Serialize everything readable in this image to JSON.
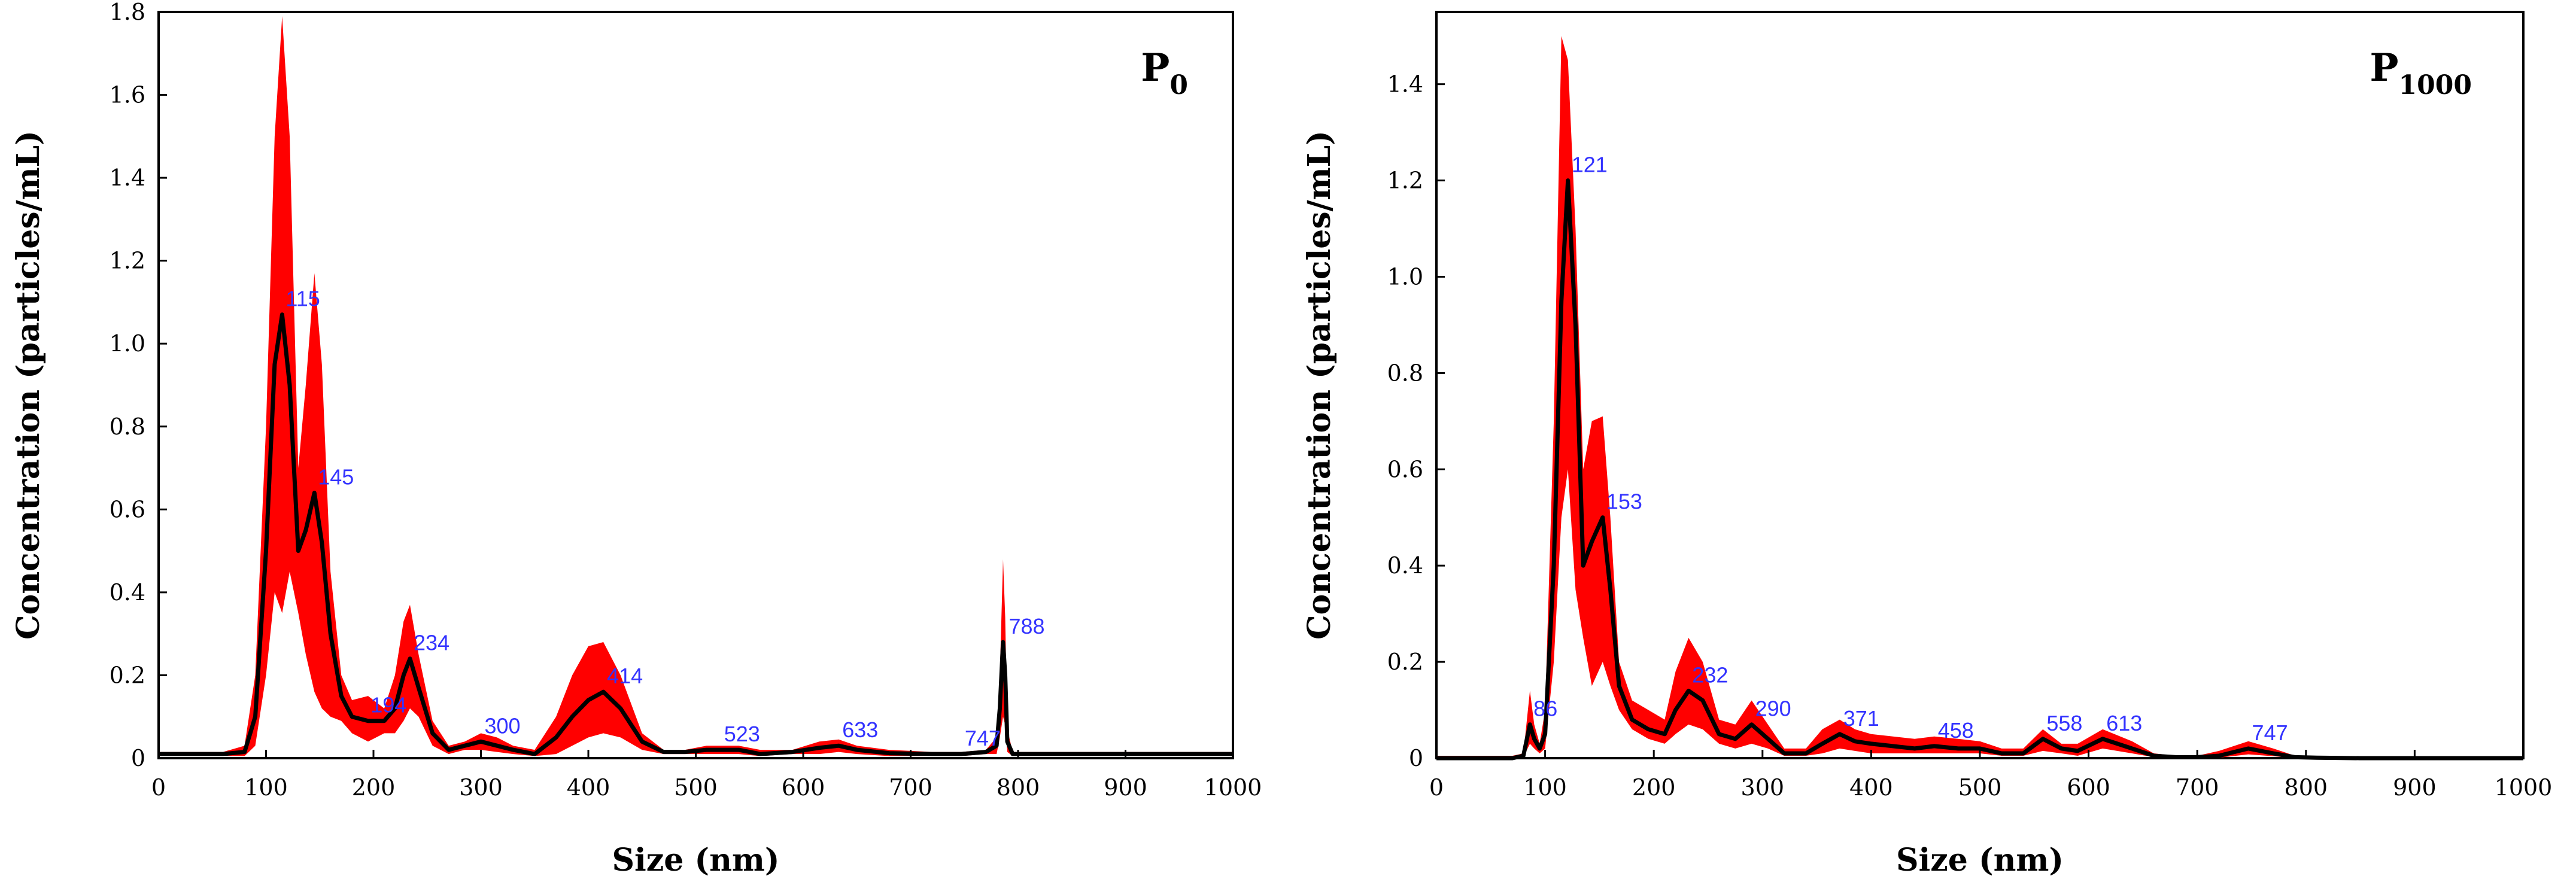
{
  "chart_data": [
    {
      "type": "line",
      "panel_label": "P",
      "panel_subscript": "0",
      "xlabel": "Size (nm)",
      "ylabel": "Concentration (particles/mL)",
      "xlim": [
        0,
        1000
      ],
      "ylim": [
        0,
        1.8
      ],
      "xticks": [
        "0",
        "100",
        "200",
        "300",
        "400",
        "500",
        "600",
        "700",
        "800",
        "900",
        "1000"
      ],
      "yticks": [
        "0",
        "0.2",
        "0.4",
        "0.6",
        "0.8",
        "1.0",
        "1.2",
        "1.4",
        "1.6",
        "1.8"
      ],
      "series": [
        {
          "name": "mean",
          "x": [
            0,
            60,
            80,
            90,
            100,
            108,
            115,
            122,
            130,
            137,
            145,
            152,
            160,
            170,
            180,
            195,
            210,
            220,
            228,
            234,
            242,
            255,
            270,
            285,
            300,
            315,
            330,
            350,
            370,
            385,
            400,
            414,
            430,
            450,
            470,
            490,
            510,
            523,
            540,
            560,
            590,
            615,
            633,
            650,
            680,
            720,
            747,
            770,
            780,
            783,
            786,
            788,
            790,
            795,
            810,
            850,
            900,
            950,
            1000
          ],
          "values": [
            0.01,
            0.01,
            0.015,
            0.1,
            0.5,
            0.95,
            1.07,
            0.9,
            0.5,
            0.55,
            0.64,
            0.52,
            0.3,
            0.15,
            0.1,
            0.09,
            0.09,
            0.12,
            0.2,
            0.24,
            0.17,
            0.06,
            0.02,
            0.03,
            0.04,
            0.03,
            0.02,
            0.01,
            0.05,
            0.1,
            0.14,
            0.16,
            0.12,
            0.04,
            0.015,
            0.015,
            0.02,
            0.02,
            0.02,
            0.01,
            0.015,
            0.025,
            0.03,
            0.02,
            0.012,
            0.01,
            0.01,
            0.015,
            0.03,
            0.12,
            0.28,
            0.2,
            0.04,
            0.01,
            0.01,
            0.01,
            0.01,
            0.01,
            0.01
          ]
        },
        {
          "name": "error band upper",
          "x": [
            0,
            60,
            80,
            90,
            100,
            108,
            115,
            122,
            130,
            137,
            145,
            152,
            160,
            170,
            180,
            195,
            210,
            220,
            228,
            234,
            242,
            255,
            270,
            285,
            300,
            315,
            330,
            350,
            370,
            385,
            400,
            414,
            430,
            450,
            470,
            490,
            510,
            523,
            540,
            560,
            590,
            615,
            633,
            650,
            680,
            720,
            747,
            770,
            780,
            783,
            786,
            788,
            790,
            795,
            810,
            850,
            900,
            950,
            1000
          ],
          "values": [
            0.015,
            0.015,
            0.03,
            0.2,
            0.8,
            1.5,
            1.79,
            1.5,
            0.7,
            0.9,
            1.17,
            0.95,
            0.45,
            0.2,
            0.14,
            0.15,
            0.12,
            0.2,
            0.33,
            0.37,
            0.25,
            0.09,
            0.03,
            0.04,
            0.06,
            0.05,
            0.03,
            0.02,
            0.1,
            0.2,
            0.27,
            0.28,
            0.2,
            0.06,
            0.02,
            0.02,
            0.03,
            0.03,
            0.03,
            0.02,
            0.02,
            0.04,
            0.045,
            0.03,
            0.02,
            0.015,
            0.015,
            0.02,
            0.05,
            0.2,
            0.48,
            0.34,
            0.07,
            0.015,
            0.015,
            0.015,
            0.015,
            0.015,
            0.015
          ]
        },
        {
          "name": "error band lower",
          "x": [
            0,
            60,
            80,
            90,
            100,
            108,
            115,
            122,
            130,
            137,
            145,
            152,
            160,
            170,
            180,
            195,
            210,
            220,
            228,
            234,
            242,
            255,
            270,
            285,
            300,
            315,
            330,
            350,
            370,
            385,
            400,
            414,
            430,
            450,
            470,
            490,
            510,
            523,
            540,
            560,
            590,
            615,
            633,
            650,
            680,
            720,
            747,
            770,
            780,
            783,
            786,
            788,
            790,
            795,
            810,
            850,
            900,
            950,
            1000
          ],
          "values": [
            0.005,
            0.005,
            0.005,
            0.03,
            0.2,
            0.4,
            0.35,
            0.45,
            0.35,
            0.25,
            0.16,
            0.12,
            0.1,
            0.09,
            0.06,
            0.04,
            0.06,
            0.06,
            0.09,
            0.12,
            0.1,
            0.03,
            0.01,
            0.02,
            0.02,
            0.015,
            0.01,
            0.005,
            0.01,
            0.03,
            0.05,
            0.06,
            0.05,
            0.02,
            0.01,
            0.01,
            0.01,
            0.01,
            0.01,
            0.005,
            0.01,
            0.01,
            0.015,
            0.01,
            0.005,
            0.005,
            0.005,
            0.01,
            0.01,
            0.05,
            0.1,
            0.08,
            0.015,
            0.005,
            0.005,
            0.005,
            0.005,
            0.005,
            0.005
          ]
        }
      ],
      "peak_labels": [
        {
          "text": "115",
          "x": 115,
          "y": 1.07
        },
        {
          "text": "145",
          "x": 145,
          "y": 0.64
        },
        {
          "text": "194",
          "x": 194,
          "y": 0.09
        },
        {
          "text": "234",
          "x": 234,
          "y": 0.24
        },
        {
          "text": "300",
          "x": 300,
          "y": 0.04
        },
        {
          "text": "414",
          "x": 414,
          "y": 0.16
        },
        {
          "text": "523",
          "x": 523,
          "y": 0.02
        },
        {
          "text": "633",
          "x": 633,
          "y": 0.03
        },
        {
          "text": "747",
          "x": 747,
          "y": 0.01
        },
        {
          "text": "788",
          "x": 788,
          "y": 0.28
        }
      ]
    },
    {
      "type": "line",
      "panel_label": "P",
      "panel_subscript": "1000",
      "xlabel": "Size (nm)",
      "ylabel": "Concentration (particles/mL)",
      "xlim": [
        0,
        1000
      ],
      "ylim": [
        0,
        1.55
      ],
      "xticks": [
        "0",
        "100",
        "200",
        "300",
        "400",
        "500",
        "600",
        "700",
        "800",
        "900",
        "1000"
      ],
      "yticks": [
        "0",
        "0.2",
        "0.4",
        "0.6",
        "0.8",
        "1.0",
        "1.2",
        "1.4"
      ],
      "series": [
        {
          "name": "mean",
          "x": [
            0,
            70,
            80,
            86,
            90,
            95,
            100,
            108,
            115,
            121,
            128,
            135,
            143,
            153,
            160,
            168,
            180,
            195,
            210,
            220,
            232,
            245,
            260,
            275,
            290,
            305,
            320,
            340,
            355,
            371,
            385,
            400,
            420,
            440,
            458,
            480,
            500,
            520,
            540,
            558,
            575,
            590,
            613,
            640,
            660,
            680,
            700,
            720,
            747,
            770,
            790,
            810,
            850,
            900,
            950,
            1000
          ],
          "values": [
            0.0,
            0.0,
            0.005,
            0.07,
            0.04,
            0.02,
            0.05,
            0.4,
            0.95,
            1.2,
            0.9,
            0.4,
            0.45,
            0.5,
            0.35,
            0.15,
            0.08,
            0.06,
            0.05,
            0.1,
            0.14,
            0.12,
            0.05,
            0.04,
            0.07,
            0.04,
            0.01,
            0.01,
            0.03,
            0.05,
            0.035,
            0.03,
            0.025,
            0.02,
            0.025,
            0.02,
            0.02,
            0.01,
            0.01,
            0.04,
            0.02,
            0.015,
            0.04,
            0.02,
            0.005,
            0.002,
            0.002,
            0.005,
            0.02,
            0.01,
            0.002,
            0.001,
            0.0,
            0.0,
            0.0,
            0.0
          ]
        },
        {
          "name": "error band upper",
          "x": [
            0,
            70,
            80,
            86,
            90,
            95,
            100,
            108,
            115,
            121,
            128,
            135,
            143,
            153,
            160,
            168,
            180,
            195,
            210,
            220,
            232,
            245,
            260,
            275,
            290,
            305,
            320,
            340,
            355,
            371,
            385,
            400,
            420,
            440,
            458,
            480,
            500,
            520,
            540,
            558,
            575,
            590,
            613,
            640,
            660,
            680,
            700,
            720,
            747,
            770,
            790,
            810,
            850,
            900,
            950,
            1000
          ],
          "values": [
            0.005,
            0.005,
            0.01,
            0.14,
            0.07,
            0.03,
            0.1,
            0.7,
            1.5,
            1.45,
            1.1,
            0.6,
            0.7,
            0.71,
            0.5,
            0.2,
            0.12,
            0.1,
            0.08,
            0.18,
            0.25,
            0.2,
            0.08,
            0.07,
            0.12,
            0.07,
            0.02,
            0.02,
            0.06,
            0.08,
            0.06,
            0.05,
            0.045,
            0.04,
            0.045,
            0.04,
            0.035,
            0.02,
            0.02,
            0.06,
            0.03,
            0.03,
            0.06,
            0.035,
            0.01,
            0.005,
            0.005,
            0.015,
            0.035,
            0.02,
            0.005,
            0.003,
            0.002,
            0.002,
            0.002,
            0.002
          ]
        },
        {
          "name": "error band lower",
          "x": [
            0,
            70,
            80,
            86,
            90,
            95,
            100,
            108,
            115,
            121,
            128,
            135,
            143,
            153,
            160,
            168,
            180,
            195,
            210,
            220,
            232,
            245,
            260,
            275,
            290,
            305,
            320,
            340,
            355,
            371,
            385,
            400,
            420,
            440,
            458,
            480,
            500,
            520,
            540,
            558,
            575,
            590,
            613,
            640,
            660,
            680,
            700,
            720,
            747,
            770,
            790,
            810,
            850,
            900,
            950,
            1000
          ],
          "values": [
            0.0,
            0.0,
            0.002,
            0.03,
            0.02,
            0.01,
            0.02,
            0.2,
            0.5,
            0.6,
            0.35,
            0.25,
            0.15,
            0.2,
            0.15,
            0.1,
            0.06,
            0.04,
            0.03,
            0.05,
            0.07,
            0.06,
            0.03,
            0.02,
            0.03,
            0.02,
            0.005,
            0.005,
            0.01,
            0.02,
            0.015,
            0.01,
            0.01,
            0.01,
            0.01,
            0.01,
            0.01,
            0.005,
            0.005,
            0.015,
            0.01,
            0.005,
            0.02,
            0.01,
            0.002,
            0.0,
            0.0,
            0.001,
            0.008,
            0.004,
            0.0,
            0.0,
            0.0,
            0.0,
            0.0,
            0.0
          ]
        }
      ],
      "peak_labels": [
        {
          "text": "86",
          "x": 86,
          "y": 0.07
        },
        {
          "text": "121",
          "x": 121,
          "y": 1.2
        },
        {
          "text": "153",
          "x": 153,
          "y": 0.5
        },
        {
          "text": "232",
          "x": 232,
          "y": 0.14
        },
        {
          "text": "290",
          "x": 290,
          "y": 0.07
        },
        {
          "text": "371",
          "x": 371,
          "y": 0.05
        },
        {
          "text": "458",
          "x": 458,
          "y": 0.025
        },
        {
          "text": "558",
          "x": 558,
          "y": 0.04
        },
        {
          "text": "613",
          "x": 613,
          "y": 0.04
        },
        {
          "text": "747",
          "x": 747,
          "y": 0.02
        }
      ]
    }
  ]
}
